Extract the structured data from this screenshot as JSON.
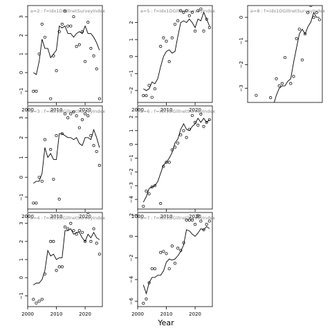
{
  "figure": {
    "xlabel": "Year"
  },
  "chart_data": [
    {
      "type": "line",
      "title": "a=2 : f=idx1DGillnetSurveyIndex",
      "xlim": [
        2000,
        2026
      ],
      "ylim": [
        -1.6,
        3.6
      ],
      "yticks": [
        -1,
        0,
        1,
        2,
        3
      ],
      "xticks": [
        2000,
        2010,
        2020
      ],
      "line": {
        "x": [
          2002,
          2003,
          2004,
          2005,
          2006,
          2007,
          2008,
          2009,
          2010,
          2011,
          2012,
          2013,
          2014,
          2015,
          2016,
          2017,
          2018,
          2019,
          2020,
          2021,
          2022,
          2023,
          2024,
          2025
        ],
        "y": [
          0.0,
          -0.1,
          0.6,
          1.8,
          1.3,
          1.3,
          0.8,
          1.0,
          1.2,
          2.5,
          2.4,
          2.5,
          2.1,
          2.1,
          1.9,
          2.1,
          2.2,
          2.1,
          2.5,
          2.1,
          2.1,
          1.9,
          1.6,
          1.2
        ]
      },
      "points": {
        "x": [
          2002,
          2003,
          2004,
          2005,
          2006,
          2008,
          2009,
          2010,
          2011,
          2012,
          2013,
          2014,
          2015,
          2016,
          2017,
          2018,
          2019,
          2020,
          2021,
          2022,
          2023,
          2024,
          2025
        ],
        "y": [
          -1.0,
          -1.0,
          1.0,
          2.6,
          1.9,
          -1.4,
          0.9,
          0.1,
          2.2,
          2.6,
          3.3,
          2.5,
          2.5,
          3.0,
          1.4,
          1.5,
          2.2,
          0.6,
          2.7,
          1.3,
          0.9,
          0.2,
          -1.4
        ]
      }
    },
    {
      "type": "line",
      "title": "a=3 : f=idx1DGillnetSurveyIndex",
      "xlim": [
        2000,
        2026
      ],
      "ylim": [
        -1.6,
        3.6
      ],
      "yticks": [
        -1,
        0,
        1,
        2,
        3
      ],
      "xticks": [
        2000,
        2010,
        2020
      ],
      "line": {
        "x": [
          2002,
          2003,
          2004,
          2005,
          2006,
          2007,
          2008,
          2009,
          2010,
          2011,
          2012,
          2013,
          2014,
          2015,
          2016,
          2017,
          2018,
          2019,
          2020,
          2021,
          2022,
          2023,
          2024,
          2025
        ],
        "y": [
          -0.3,
          -0.2,
          -0.2,
          0.2,
          1.5,
          1.0,
          1.2,
          0.9,
          0.9,
          2.2,
          2.2,
          2.1,
          2.0,
          2.0,
          1.9,
          2.0,
          1.7,
          1.6,
          2.0,
          2.0,
          1.9,
          2.4,
          2.0,
          1.5
        ]
      },
      "points": {
        "x": [
          2002,
          2003,
          2004,
          2005,
          2006,
          2008,
          2009,
          2010,
          2011,
          2012,
          2013,
          2014,
          2015,
          2016,
          2017,
          2018,
          2019,
          2020,
          2021,
          2022,
          2023,
          2024,
          2025
        ],
        "y": [
          -1.3,
          -1.3,
          0.0,
          -0.2,
          1.9,
          1.4,
          -0.1,
          2.1,
          -1.1,
          2.2,
          3.2,
          3.0,
          3.2,
          3.3,
          3.1,
          2.5,
          2.9,
          3.2,
          3.1,
          2.1,
          1.6,
          1.3,
          0.6
        ]
      }
    },
    {
      "type": "line",
      "title": "a=4 : f=idx1DGillnetSurveyIndex",
      "xlim": [
        2000,
        2026
      ],
      "ylim": [
        -1.6,
        3.6
      ],
      "yticks": [
        -1,
        0,
        1,
        2,
        3
      ],
      "xticks": [
        2000,
        2010,
        2020
      ],
      "line": {
        "x": [
          2002,
          2003,
          2004,
          2005,
          2006,
          2007,
          2008,
          2009,
          2010,
          2011,
          2012,
          2013,
          2014,
          2015,
          2016,
          2017,
          2018,
          2019,
          2020,
          2021,
          2022,
          2023,
          2024,
          2025
        ],
        "y": [
          -0.4,
          -0.3,
          -0.3,
          -0.1,
          0.4,
          1.5,
          1.2,
          1.3,
          1.0,
          1.1,
          1.1,
          2.6,
          2.6,
          2.7,
          2.4,
          2.5,
          2.5,
          2.2,
          2.0,
          2.4,
          2.2,
          2.5,
          2.2,
          2.1
        ]
      },
      "points": {
        "x": [
          2002,
          2003,
          2004,
          2005,
          2006,
          2008,
          2009,
          2010,
          2011,
          2012,
          2013,
          2014,
          2015,
          2016,
          2017,
          2018,
          2019,
          2020,
          2021,
          2022,
          2023,
          2024,
          2025
        ],
        "y": [
          -1.2,
          -1.4,
          -1.3,
          -1.2,
          0.2,
          2.0,
          2.0,
          0.4,
          0.6,
          0.6,
          2.8,
          2.7,
          3.0,
          2.6,
          2.4,
          2.6,
          2.5,
          2.0,
          3.6,
          2.0,
          2.7,
          1.9,
          1.3
        ]
      }
    },
    {
      "type": "line",
      "title": "a=5 : f=idx1DGillnetSurveyIndex",
      "xlim": [
        2000,
        2026
      ],
      "ylim": [
        -2.7,
        3.0
      ],
      "yticks": [
        -2,
        -1,
        0,
        1,
        2
      ],
      "xticks": [
        2000,
        2010,
        2020
      ],
      "line": {
        "x": [
          2002,
          2003,
          2004,
          2005,
          2006,
          2007,
          2008,
          2009,
          2010,
          2011,
          2012,
          2013,
          2014,
          2015,
          2016,
          2017,
          2018,
          2019,
          2020,
          2021,
          2022,
          2023,
          2024,
          2025
        ],
        "y": [
          -1.9,
          -2.0,
          -1.9,
          -1.5,
          -1.6,
          -1.3,
          -0.6,
          0.0,
          0.3,
          0.4,
          0.2,
          0.3,
          1.2,
          2.0,
          2.1,
          2.0,
          2.2,
          2.0,
          1.7,
          2.2,
          2.1,
          2.6,
          2.2,
          1.8
        ]
      },
      "points": {
        "x": [
          2002,
          2003,
          2004,
          2005,
          2006,
          2008,
          2009,
          2010,
          2011,
          2012,
          2013,
          2014,
          2015,
          2016,
          2017,
          2018,
          2019,
          2020,
          2021,
          2022,
          2023,
          2024,
          2025
        ],
        "y": [
          -2.3,
          -2.3,
          -1.7,
          -2.4,
          -1.9,
          0.6,
          1.1,
          0.9,
          -0.3,
          1.1,
          1.9,
          2.1,
          2.7,
          2.6,
          2.7,
          2.4,
          2.6,
          1.5,
          2.7,
          2.8,
          1.5,
          2.2,
          1.7
        ]
      }
    },
    {
      "type": "line",
      "title": "a=6 : f=idx1DGillnetSurveyIndex",
      "xlim": [
        2000,
        2026
      ],
      "ylim": [
        -4.7,
        2.8
      ],
      "yticks": [
        -4,
        -3,
        -2,
        -1,
        0,
        1,
        2
      ],
      "xticks": [
        2000,
        2010,
        2020
      ],
      "line": {
        "x": [
          2002,
          2003,
          2004,
          2005,
          2006,
          2007,
          2008,
          2009,
          2010,
          2011,
          2012,
          2013,
          2014,
          2015,
          2016,
          2017,
          2018,
          2019,
          2020,
          2021,
          2022,
          2023,
          2024,
          2025
        ],
        "y": [
          -4.2,
          -3.8,
          -3.2,
          -3.1,
          -3.0,
          -2.7,
          -2.1,
          -1.5,
          -1.3,
          -1.0,
          -0.6,
          0.1,
          0.4,
          1.1,
          1.5,
          1.1,
          1.0,
          1.3,
          1.5,
          1.9,
          1.6,
          1.9,
          1.6,
          1.8
        ]
      },
      "points": {
        "x": [
          2002,
          2003,
          2004,
          2005,
          2006,
          2008,
          2009,
          2010,
          2011,
          2012,
          2013,
          2014,
          2015,
          2016,
          2017,
          2018,
          2019,
          2020,
          2021,
          2022,
          2023,
          2024,
          2025
        ],
        "y": [
          -4.5,
          -3.4,
          -3.6,
          -3.1,
          -3.0,
          -4.3,
          -1.6,
          -1.3,
          -1.3,
          -0.4,
          -0.2,
          0.1,
          0.7,
          1.0,
          0.5,
          1.1,
          2.1,
          1.6,
          1.4,
          2.2,
          1.3,
          1.6,
          1.8
        ]
      }
    },
    {
      "type": "line",
      "title": "a=7 : f=idx1DGillnetSurveyIndex",
      "xlim": [
        2000,
        2026
      ],
      "ylim": [
        -6.5,
        2.2
      ],
      "yticks": [
        -6,
        -4,
        -2,
        0,
        2
      ],
      "xticks": [
        2000,
        2010,
        2020
      ],
      "line": {
        "x": [
          2002,
          2003,
          2004,
          2005,
          2006,
          2007,
          2008,
          2009,
          2010,
          2011,
          2012,
          2013,
          2014,
          2015,
          2016,
          2017,
          2018,
          2019,
          2020,
          2021,
          2022,
          2023,
          2024,
          2025
        ],
        "y": [
          -4.5,
          -5.3,
          -4.3,
          -3.8,
          -3.8,
          -3.6,
          -3.6,
          -3.2,
          -2.4,
          -2.1,
          -2.2,
          -2.1,
          -1.8,
          -1.4,
          -0.8,
          0.6,
          0.5,
          0.2,
          0.0,
          0.3,
          0.7,
          0.6,
          0.9,
          0.7
        ]
      },
      "points": {
        "x": [
          2002,
          2003,
          2004,
          2005,
          2006,
          2008,
          2009,
          2010,
          2011,
          2012,
          2013,
          2014,
          2015,
          2016,
          2017,
          2018,
          2019,
          2020,
          2021,
          2022,
          2023,
          2024,
          2025
        ],
        "y": [
          -6.2,
          -5.8,
          -4.3,
          -3.0,
          -3.0,
          -1.5,
          -1.4,
          -1.6,
          -3.0,
          -0.9,
          -2.5,
          -1.1,
          -1.3,
          -0.6,
          1.5,
          1.5,
          1.5,
          1.1,
          1.9,
          1.4,
          0.6,
          1.1,
          1.4
        ]
      }
    },
    {
      "type": "line",
      "title": "a=8 : f=idx1DGillnetSurveyIndex",
      "xlim": [
        2000,
        2026
      ],
      "ylim": [
        -3.6,
        0.5
      ],
      "yticks": [
        -3,
        -2,
        -1,
        0
      ],
      "xticks": [],
      "line": {
        "x": [
          2007,
          2008,
          2009,
          2010,
          2011,
          2012,
          2013,
          2014,
          2015,
          2016,
          2017,
          2018,
          2019,
          2020,
          2021,
          2022,
          2023,
          2024,
          2025
        ],
        "y": [
          -4.0,
          -3.8,
          -3.7,
          -3.3,
          -3.0,
          -2.9,
          -2.9,
          -2.7,
          -2.6,
          -1.9,
          -1.3,
          -0.7,
          -0.5,
          -0.7,
          -0.4,
          -0.2,
          0.2,
          0.0,
          0.0
        ]
      },
      "points": {
        "x": [
          2003,
          2008,
          2010,
          2011,
          2012,
          2013,
          2015,
          2016,
          2017,
          2018,
          2019,
          2020,
          2021,
          2022,
          2023,
          2024,
          2025
        ],
        "y": [
          -3.3,
          -3.4,
          -2.6,
          -2.9,
          -2.8,
          -1.7,
          -2.8,
          -2.5,
          -0.9,
          -0.5,
          -1.8,
          -0.7,
          0.2,
          0.5,
          0.0,
          0.2,
          -0.1
        ]
      }
    }
  ]
}
